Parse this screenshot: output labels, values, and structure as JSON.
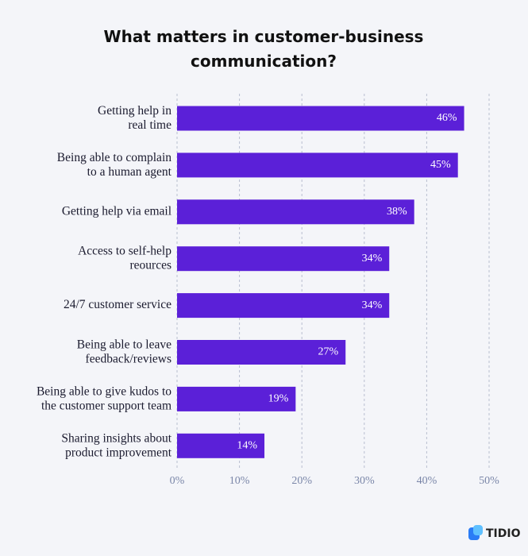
{
  "chart_data": {
    "type": "bar",
    "orientation": "horizontal",
    "title": "What matters in customer-business\ncommunication?",
    "categories": [
      "Getting help in\nreal time",
      "Being able to complain\nto a human agent",
      "Getting help via email",
      "Access to self-help\nreources",
      "24/7 customer service",
      "Being able to leave\nfeedback/reviews",
      "Being able to give kudos to\nthe customer support team",
      "Sharing insights about\nproduct improvement"
    ],
    "values": [
      46,
      45,
      38,
      34,
      34,
      27,
      19,
      14
    ],
    "value_labels": [
      "46%",
      "45%",
      "38%",
      "34%",
      "34%",
      "27%",
      "19%",
      "14%"
    ],
    "color": "#5b20d8",
    "xlim": [
      0,
      50
    ],
    "xticks": [
      {
        "value": 0,
        "label": "0%"
      },
      {
        "value": 10,
        "label": "10%"
      },
      {
        "value": 20,
        "label": "20%"
      },
      {
        "value": 30,
        "label": "30%"
      },
      {
        "value": 40,
        "label": "40%"
      },
      {
        "value": 50,
        "label": "50%"
      }
    ],
    "grid": true
  },
  "brand": "TIDIO"
}
